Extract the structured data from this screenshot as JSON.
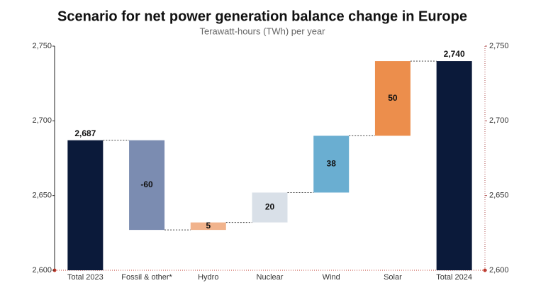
{
  "chart_data": {
    "type": "waterfall",
    "title": "Scenario for net power generation balance change in Europe",
    "subtitle": "Terawatt-hours (TWh) per year",
    "categories": [
      "Total 2023",
      "Fossil & other*",
      "Hydro",
      "Nuclear",
      "Wind",
      "Solar",
      "Total 2024"
    ],
    "values": [
      2687,
      -60,
      5,
      20,
      38,
      50,
      2740
    ],
    "value_labels": [
      "2,687",
      "-60",
      "5",
      "20",
      "38",
      "50",
      "2,740"
    ],
    "colors": [
      "#0b1a3a",
      "#7b8cb1",
      "#f1b38c",
      "#d9e0e8",
      "#6aaed1",
      "#ec8e4c",
      "#0b1a3a"
    ],
    "ylim": [
      2600,
      2750
    ],
    "yticks": [
      {
        "value": 2600,
        "label": "2,600"
      },
      {
        "value": 2650,
        "label": "2,650"
      },
      {
        "value": 2700,
        "label": "2,700"
      },
      {
        "value": 2750,
        "label": "2,750"
      }
    ],
    "y2lim": [
      2600,
      2750
    ],
    "y2ticks": [
      {
        "value": 2600,
        "label": "2,600"
      },
      {
        "value": 2650,
        "label": "2,650"
      },
      {
        "value": 2700,
        "label": "2,700"
      },
      {
        "value": 2750,
        "label": "2,750"
      }
    ]
  }
}
